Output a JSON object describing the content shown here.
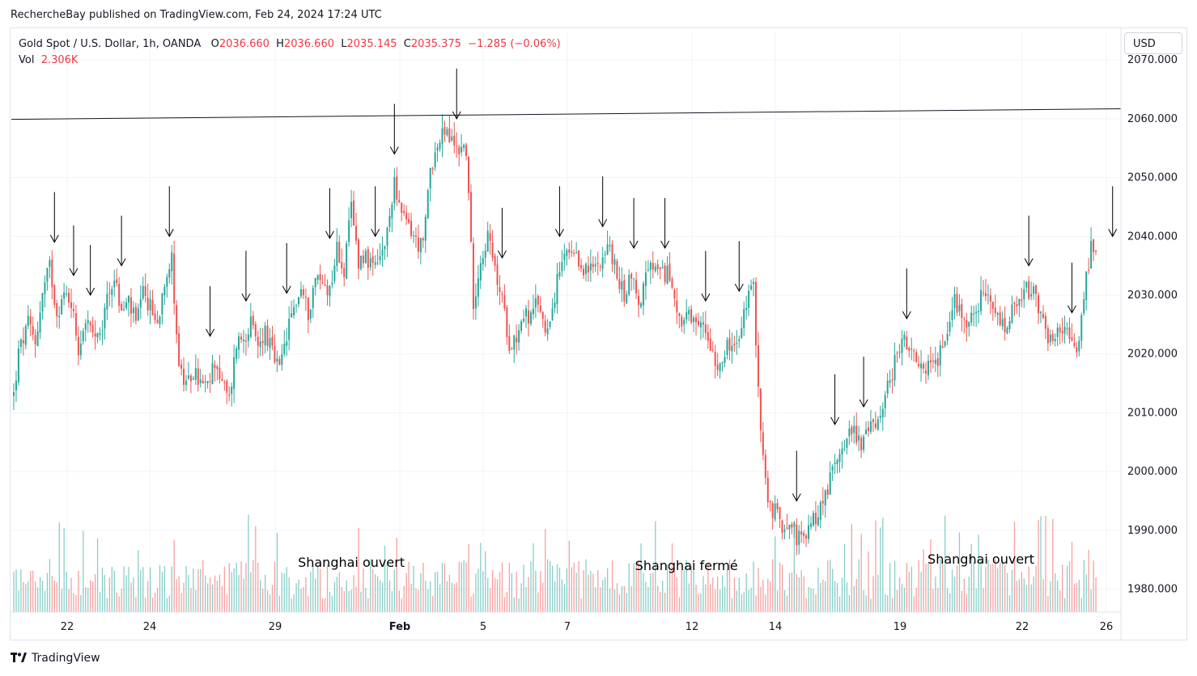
{
  "header": {
    "publisher_line": "RechercheBay published on TradingView.com, Feb 24, 2024 17:24 UTC"
  },
  "legend": {
    "symbol": "Gold Spot / U.S. Dollar, 1h, OANDA",
    "o_label": "O",
    "o_value": "2036.660",
    "h_label": "H",
    "h_value": "2036.660",
    "l_label": "L",
    "l_value": "2035.145",
    "c_label": "C",
    "c_value": "2035.375",
    "change": "−1.285 (−0.06%)",
    "vol_label": "Vol",
    "vol_value": "2.306K"
  },
  "currency_button": "USD",
  "footer": {
    "brand": "TradingView",
    "logo_icon": "tradingview-logo-icon"
  },
  "colors": {
    "up": "#26a69a",
    "down": "#ef5350",
    "grid": "#f0f3fa",
    "text": "#131722",
    "legend_value": "#f23645"
  },
  "chart_data": {
    "type": "candlestick",
    "symbol": "Gold Spot / U.S. Dollar",
    "interval": "1h",
    "ylim": [
      1976,
      2072
    ],
    "y_ticks": [
      "1980.000",
      "1990.000",
      "2000.000",
      "2010.000",
      "2020.000",
      "2030.000",
      "2040.000",
      "2050.000",
      "2060.000",
      "2070.000"
    ],
    "x_ticks": [
      "22",
      "24",
      "29",
      "Feb",
      "5",
      "7",
      "12",
      "14",
      "19",
      "22",
      "26"
    ],
    "grid": true,
    "price_path": [
      [
        0,
        2013
      ],
      [
        2,
        2020
      ],
      [
        6,
        2025
      ],
      [
        9,
        2022
      ],
      [
        12,
        2030
      ],
      [
        15,
        2035
      ],
      [
        18,
        2027
      ],
      [
        21,
        2030
      ],
      [
        24,
        2029
      ],
      [
        27,
        2021
      ],
      [
        30,
        2026
      ],
      [
        33,
        2023
      ],
      [
        36,
        2022
      ],
      [
        39,
        2030
      ],
      [
        42,
        2033
      ],
      [
        45,
        2027
      ],
      [
        48,
        2029
      ],
      [
        51,
        2025
      ],
      [
        54,
        2030
      ],
      [
        57,
        2028
      ],
      [
        60,
        2025
      ],
      [
        63,
        2033
      ],
      [
        66,
        2036
      ],
      [
        69,
        2018
      ],
      [
        72,
        2014
      ],
      [
        75,
        2017
      ],
      [
        78,
        2015
      ],
      [
        81,
        2014
      ],
      [
        84,
        2019
      ],
      [
        87,
        2015
      ],
      [
        90,
        2012
      ],
      [
        93,
        2022
      ],
      [
        96,
        2023
      ],
      [
        99,
        2025
      ],
      [
        102,
        2021
      ],
      [
        105,
        2024
      ],
      [
        108,
        2020
      ],
      [
        111,
        2017
      ],
      [
        114,
        2023
      ],
      [
        117,
        2028
      ],
      [
        120,
        2031
      ],
      [
        123,
        2027
      ],
      [
        126,
        2033
      ],
      [
        129,
        2032
      ],
      [
        132,
        2031
      ],
      [
        135,
        2038
      ],
      [
        138,
        2034
      ],
      [
        141,
        2045
      ],
      [
        144,
        2036
      ],
      [
        147,
        2037
      ],
      [
        150,
        2034
      ],
      [
        153,
        2036
      ],
      [
        156,
        2040
      ],
      [
        159,
        2050
      ],
      [
        162,
        2043
      ],
      [
        165,
        2042
      ],
      [
        168,
        2039
      ],
      [
        171,
        2038
      ],
      [
        174,
        2052
      ],
      [
        177,
        2055
      ],
      [
        180,
        2058
      ],
      [
        183,
        2056
      ],
      [
        186,
        2055
      ],
      [
        189,
        2055
      ],
      [
        192,
        2029
      ],
      [
        195,
        2036
      ],
      [
        198,
        2040
      ],
      [
        201,
        2034
      ],
      [
        204,
        2029
      ],
      [
        207,
        2022
      ],
      [
        210,
        2023
      ],
      [
        213,
        2027
      ],
      [
        216,
        2026
      ],
      [
        219,
        2029
      ],
      [
        222,
        2024
      ],
      [
        225,
        2028
      ],
      [
        228,
        2034
      ],
      [
        231,
        2037
      ],
      [
        234,
        2036
      ],
      [
        237,
        2035
      ],
      [
        240,
        2034
      ],
      [
        243,
        2035
      ],
      [
        246,
        2037
      ],
      [
        249,
        2038
      ],
      [
        252,
        2033
      ],
      [
        255,
        2030
      ],
      [
        258,
        2034
      ],
      [
        261,
        2028
      ],
      [
        264,
        2033
      ],
      [
        267,
        2035
      ],
      [
        270,
        2033
      ],
      [
        273,
        2034
      ],
      [
        276,
        2030
      ],
      [
        279,
        2025
      ],
      [
        282,
        2026
      ],
      [
        285,
        2024
      ],
      [
        288,
        2025
      ],
      [
        291,
        2022
      ],
      [
        294,
        2018
      ],
      [
        297,
        2021
      ],
      [
        300,
        2021
      ],
      [
        303,
        2022
      ],
      [
        306,
        2029
      ],
      [
        309,
        2031
      ],
      [
        312,
        2007
      ],
      [
        315,
        1994
      ],
      [
        318,
        1993
      ],
      [
        321,
        1991
      ],
      [
        324,
        1992
      ],
      [
        327,
        1989
      ],
      [
        330,
        1988
      ],
      [
        333,
        1991
      ],
      [
        336,
        1993
      ],
      [
        339,
        1996
      ],
      [
        342,
        2000
      ],
      [
        345,
        2004
      ],
      [
        348,
        2006
      ],
      [
        351,
        2007
      ],
      [
        354,
        2005
      ],
      [
        357,
        2007
      ],
      [
        360,
        2008
      ],
      [
        363,
        2012
      ],
      [
        366,
        2015
      ],
      [
        369,
        2021
      ],
      [
        372,
        2022
      ],
      [
        375,
        2020
      ],
      [
        378,
        2017
      ],
      [
        381,
        2018
      ],
      [
        384,
        2018
      ],
      [
        387,
        2020
      ],
      [
        390,
        2025
      ],
      [
        393,
        2029
      ],
      [
        396,
        2027
      ],
      [
        399,
        2025
      ],
      [
        402,
        2028
      ],
      [
        405,
        2030
      ],
      [
        408,
        2028
      ],
      [
        411,
        2026
      ],
      [
        414,
        2024
      ],
      [
        417,
        2027
      ],
      [
        420,
        2028
      ],
      [
        423,
        2031
      ],
      [
        426,
        2030
      ],
      [
        429,
        2026
      ],
      [
        432,
        2023
      ],
      [
        435,
        2022
      ],
      [
        438,
        2025
      ],
      [
        441,
        2022
      ],
      [
        444,
        2020
      ],
      [
        447,
        2030
      ],
      [
        450,
        2038
      ],
      [
        452,
        2036
      ]
    ],
    "horizontal_line": {
      "start": [
        0,
        2059.9
      ],
      "end": [
        453,
        2061.7
      ]
    },
    "arrow_bars": [
      17,
      25,
      32,
      45,
      65,
      82,
      97,
      114,
      132,
      151,
      159,
      185,
      204,
      228,
      246,
      259,
      272,
      289,
      303,
      327,
      343,
      355,
      373,
      424,
      442,
      459
    ],
    "annotations": [
      {
        "text": "Shanghai ouvert",
        "bar": 141
      },
      {
        "text": "Shanghai fermé",
        "bar": 281
      },
      {
        "text": "Shanghai ouvert",
        "bar": 404
      }
    ]
  }
}
